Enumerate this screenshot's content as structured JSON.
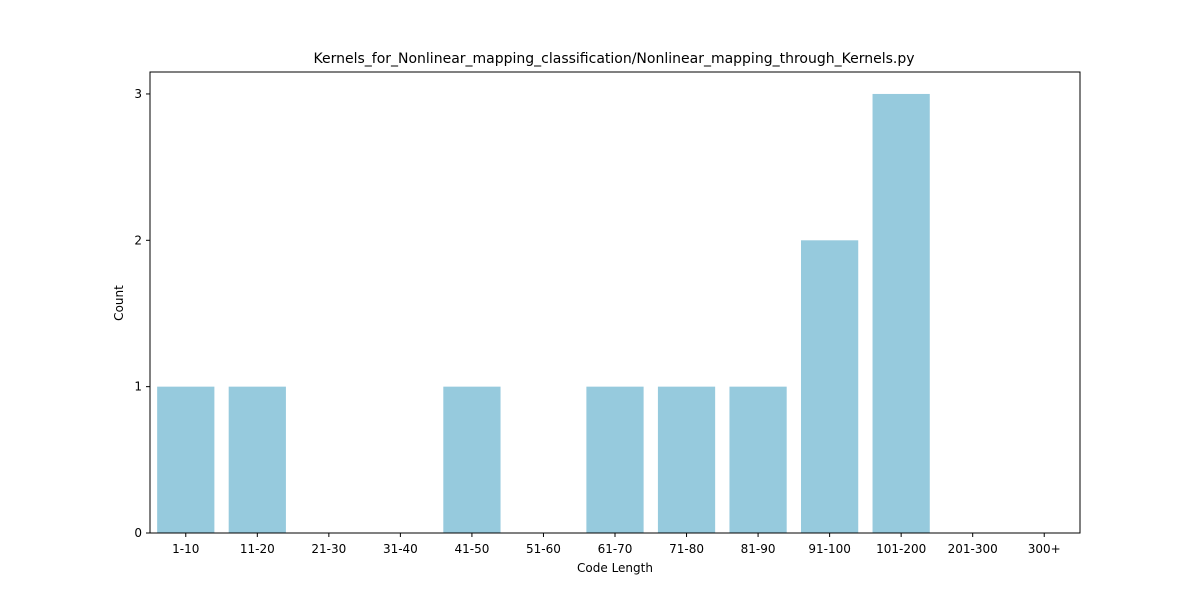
{
  "chart_data": {
    "type": "bar",
    "title": "Kernels_for_Nonlinear_mapping_classification/Nonlinear_mapping_through_Kernels.py",
    "xlabel": "Code Length",
    "ylabel": "Count",
    "categories": [
      "1-10",
      "11-20",
      "21-30",
      "31-40",
      "41-50",
      "51-60",
      "61-70",
      "71-80",
      "81-90",
      "91-100",
      "101-200",
      "201-300",
      "300+"
    ],
    "values": [
      1,
      1,
      0,
      0,
      1,
      0,
      1,
      1,
      1,
      2,
      3,
      0,
      0
    ],
    "yticks": [
      "0",
      "1",
      "2",
      "3"
    ],
    "ylim": [
      0,
      3.15
    ],
    "bar_color": "#96cadd",
    "grid": false,
    "legend": "none"
  }
}
